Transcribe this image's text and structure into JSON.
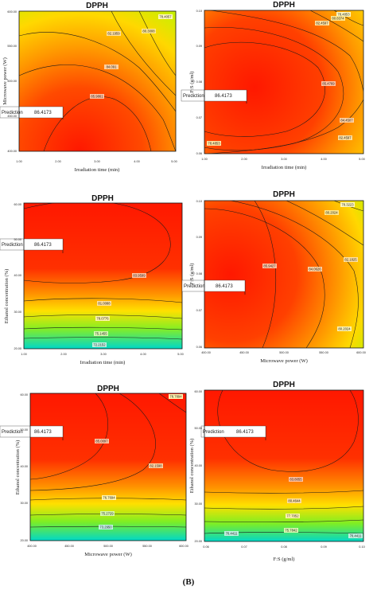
{
  "caption": "(B)",
  "colors": {
    "peak": "#ff1a00",
    "mid": "#ffaa00",
    "yellow": "#ffee00",
    "green": "#55ee22",
    "low": "#00d8d0"
  },
  "chart_data": [
    {
      "type": "contour",
      "title": "DPPH",
      "xlabel": "Irradiation time (min)",
      "ylabel": "Microwave power (W)",
      "xlim": [
        1.0,
        5.0
      ],
      "ylim": [
        400.0,
        600.0
      ],
      "xticks": [
        "1.00",
        "2.00",
        "3.00",
        "4.00",
        "5.00"
      ],
      "yticks": [
        "400.00",
        "450.00",
        "500.00",
        "550.00",
        "600.00"
      ],
      "contour_labels": [
        "78.4057",
        "80.3008",
        "82.1959",
        "84.091",
        "85.9861"
      ],
      "prediction": {
        "label": "Prediction",
        "value": "86.4173"
      }
    },
    {
      "type": "contour",
      "title": "DPPH",
      "xlabel": "Irradiation time (min)",
      "ylabel": "F:S (g/ml)",
      "xlim": [
        1.0,
        5.0
      ],
      "ylim": [
        0.06,
        0.1
      ],
      "xticks": [
        "1.00",
        "2.00",
        "3.00",
        "4.00",
        "5.00"
      ],
      "yticks": [
        "0.06",
        "0.07",
        "0.08",
        "0.09",
        "0.10"
      ],
      "contour_labels": [
        "78.4853",
        "80.8374",
        "82.4597",
        "84.4507",
        "85.4769"
      ],
      "prediction": {
        "label": "Prediction",
        "value": "86.4173"
      }
    },
    {
      "type": "contour",
      "title": "DPPH",
      "xlabel": "Irradiation time (min)",
      "ylabel": "Ethanol concentration (%)",
      "xlim": [
        1.0,
        5.0
      ],
      "ylim": [
        20.0,
        60.0
      ],
      "xticks": [
        "1.00",
        "2.00",
        "3.00",
        "4.00",
        "5.00"
      ],
      "yticks": [
        "20.00",
        "30.00",
        "40.00",
        "50.00",
        "60.00"
      ],
      "contour_labels": [
        "83.9599",
        "81.0088",
        "78.0776",
        "75.1455",
        "72.2152"
      ],
      "prediction": {
        "label": "Prediction",
        "value": "86.4173"
      }
    },
    {
      "type": "contour",
      "title": "DPPH",
      "xlabel": "Microwave power (W)",
      "ylabel": "F:S (g/ml)",
      "xlim": [
        400.0,
        600.0
      ],
      "ylim": [
        0.06,
        0.1
      ],
      "xticks": [
        "400.00",
        "450.00",
        "500.00",
        "550.00",
        "600.00"
      ],
      "yticks": [
        "0.06",
        "0.07",
        "0.08",
        "0.09",
        "0.10"
      ],
      "contour_labels": [
        "85.9427",
        "84.0626",
        "82.1825",
        "80.2024",
        "78.3223"
      ],
      "prediction": {
        "label": "Prediction",
        "value": "86.4173"
      }
    },
    {
      "type": "contour",
      "title": "DPPH",
      "xlabel": "Microwave power (W)",
      "ylabel": "Ethanol concentration (%)",
      "xlim": [
        400.0,
        600.0
      ],
      "ylim": [
        20.0,
        60.0
      ],
      "xticks": [
        "400.00",
        "450.00",
        "500.00",
        "550.00",
        "600.00"
      ],
      "yticks": [
        "20.00",
        "30.00",
        "40.00",
        "50.00",
        "60.00"
      ],
      "contour_labels": [
        "78.7894",
        "85.0097",
        "82.1598",
        "76.7694",
        "75.2729",
        "73.2950"
      ],
      "prediction": {
        "label": "Prediction",
        "value": "86.4173"
      }
    },
    {
      "type": "contour",
      "title": "DPPH",
      "xlabel": "F:S (g/ml)",
      "ylabel": "Ethanol concentration (%)",
      "xlim": [
        0.06,
        0.1
      ],
      "ylim": [
        20.0,
        60.0
      ],
      "xticks": [
        "0.06",
        "0.07",
        "0.08",
        "0.09",
        "0.10"
      ],
      "yticks": [
        "20.00",
        "30.00",
        "40.00",
        "50.00",
        "60.00"
      ],
      "contour_labels": [
        "83.8055",
        "80.4644",
        "77.7052",
        "75.7842",
        "70.4411"
      ],
      "prediction": {
        "label": "Prediction",
        "value": "86.4173"
      }
    }
  ]
}
